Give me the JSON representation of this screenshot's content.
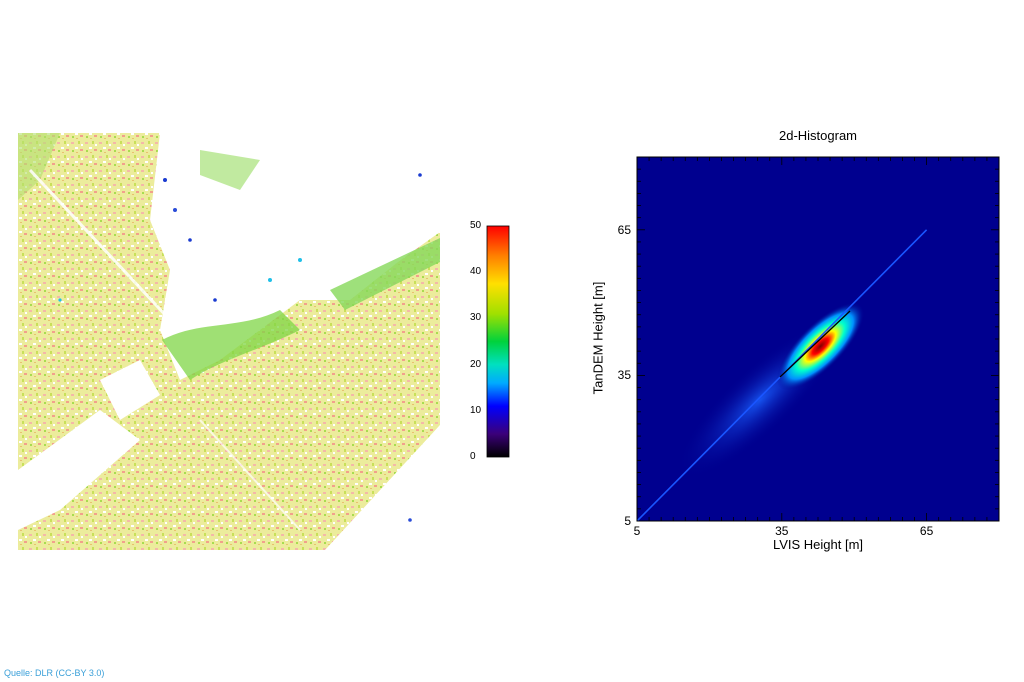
{
  "credit": "Quelle: DLR (CC-BY 3.0)",
  "chart_data": [
    {
      "type": "heatmap",
      "title": "",
      "colorbar": {
        "ticks": [
          0,
          10,
          20,
          30,
          40,
          50
        ],
        "range": [
          0,
          50
        ],
        "colors": [
          "#000000",
          "#3b007a",
          "#0000ff",
          "#00aaff",
          "#00e0c0",
          "#00d23c",
          "#a0e000",
          "#ffe000",
          "#ff8000",
          "#ff0000"
        ]
      }
    },
    {
      "type": "heatmap",
      "title": "2d-Histogram",
      "xlabel": "LVIS Height [m]",
      "ylabel": "TanDEM Height [m]",
      "xlim": [
        5,
        80
      ],
      "ylim": [
        5,
        80
      ],
      "xticks": [
        5,
        35,
        65
      ],
      "yticks": [
        5,
        35,
        65
      ],
      "reference_line": {
        "from": [
          5,
          5
        ],
        "to": [
          65,
          65
        ]
      },
      "density_peak": {
        "x": 43,
        "y": 41
      },
      "background_color": "#00008f"
    }
  ]
}
